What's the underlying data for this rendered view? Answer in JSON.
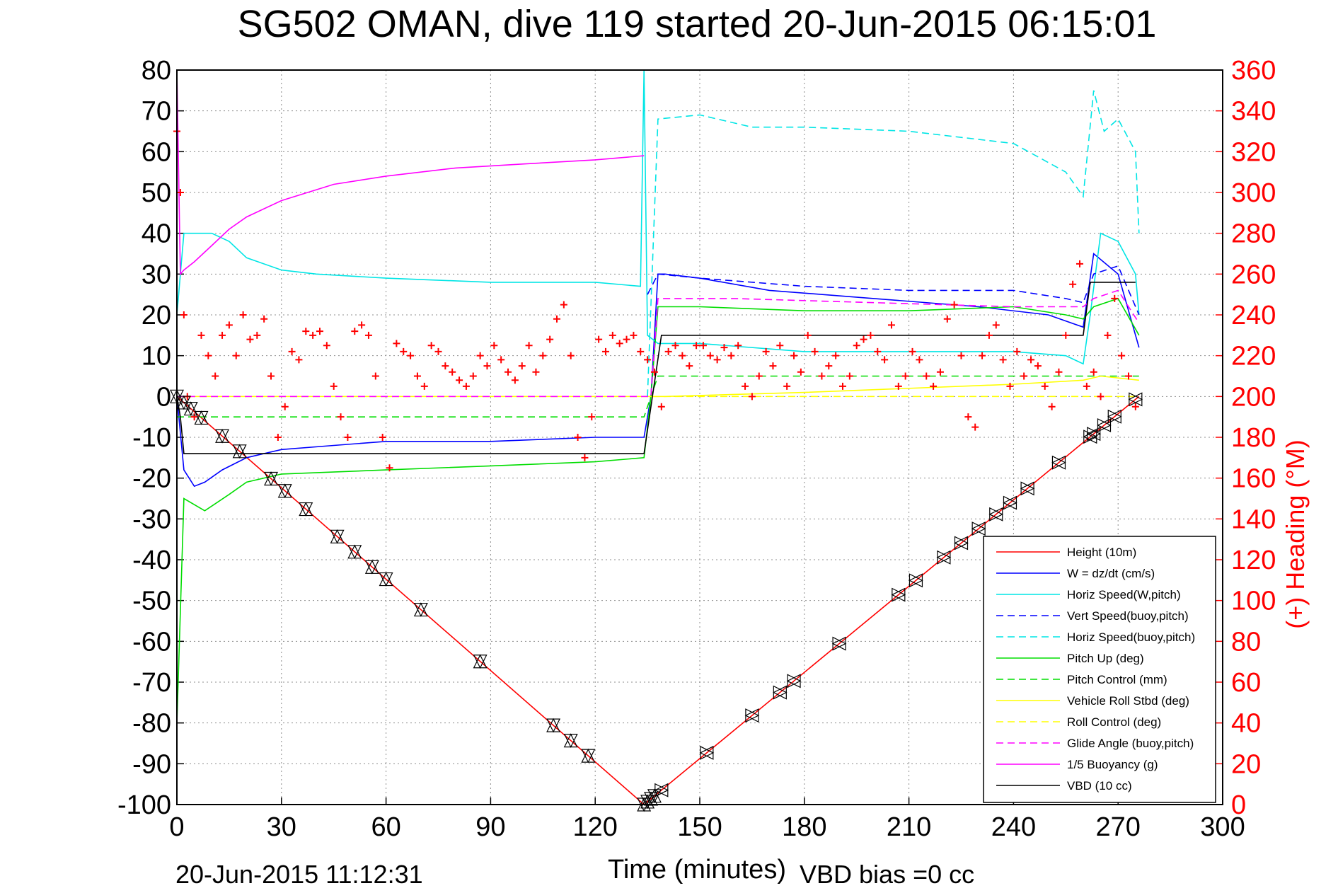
{
  "footer": {
    "timestamp": "20-Jun-2015 11:12:31",
    "vbd_bias": "VBD bias =0 cc"
  },
  "chart_data": {
    "type": "line",
    "title": "SG502 OMAN, dive 119 started 20-Jun-2015 06:15:01",
    "xlabel": "Time (minutes)",
    "ylabel": "",
    "y2label": "(+) Heading (°M)",
    "xlim": [
      0,
      300
    ],
    "ylim": [
      -100,
      80
    ],
    "y2lim": [
      0,
      360
    ],
    "grid": true,
    "legend_position": "bottom-right",
    "x_ticks": [
      "0",
      "30",
      "60",
      "90",
      "120",
      "150",
      "180",
      "210",
      "240",
      "270",
      "300"
    ],
    "y_ticks": [
      "80",
      "70",
      "60",
      "50",
      "40",
      "30",
      "20",
      "10",
      "0",
      "-10",
      "-20",
      "-30",
      "-40",
      "-50",
      "-60",
      "-70",
      "-80",
      "-90",
      "-100"
    ],
    "y2_ticks": [
      "360",
      "340",
      "320",
      "300",
      "280",
      "260",
      "240",
      "220",
      "200",
      "180",
      "160",
      "140",
      "120",
      "100",
      "80",
      "60",
      "40",
      "20",
      "0"
    ],
    "colors": {
      "axis": "#000000",
      "heading": "#ff0000",
      "grid": "#8c8c8c"
    },
    "series": [
      {
        "name": "Height (10m)",
        "color": "#ff0000",
        "dash": "solid",
        "x": [
          0,
          134,
          276
        ],
        "y": [
          0,
          -100,
          0
        ]
      },
      {
        "name": "W = dz/dt (cm/s)",
        "color": "#0000ff",
        "dash": "solid",
        "x": [
          0,
          2,
          5,
          8,
          13,
          20,
          30,
          45,
          60,
          90,
          120,
          134,
          136,
          138,
          140,
          150,
          170,
          200,
          230,
          250,
          260,
          263,
          270,
          276
        ],
        "y": [
          0,
          -18,
          -22,
          -21,
          -18,
          -15,
          -13,
          -12,
          -11,
          -11,
          -10,
          -10,
          0,
          30,
          30,
          29,
          26,
          24,
          22,
          20,
          17,
          35,
          30,
          12
        ]
      },
      {
        "name": "Horiz Speed(W,pitch)",
        "color": "#00e5e5",
        "dash": "solid",
        "x": [
          0,
          2,
          5,
          10,
          15,
          20,
          30,
          40,
          60,
          90,
          120,
          133,
          134,
          135,
          138,
          150,
          180,
          210,
          240,
          255,
          260,
          262,
          265,
          270,
          275,
          276
        ],
        "y": [
          20,
          40,
          40,
          40,
          38,
          34,
          31,
          30,
          29,
          28,
          28,
          27,
          80,
          15,
          13,
          13,
          11,
          11,
          11,
          10,
          8,
          20,
          40,
          38,
          30,
          20
        ]
      },
      {
        "name": "Vert Speed(buoy,pitch)",
        "color": "#0000ff",
        "dash": "dashed",
        "x": [
          135,
          138,
          150,
          180,
          210,
          240,
          255,
          260,
          263,
          270,
          276
        ],
        "y": [
          25,
          30,
          29,
          27,
          26,
          26,
          24,
          23,
          30,
          32,
          20
        ]
      },
      {
        "name": "Horiz Speed(buoy,pitch)",
        "color": "#00e5e5",
        "dash": "dashed",
        "x": [
          135,
          138,
          150,
          165,
          180,
          210,
          240,
          255,
          260,
          263,
          266,
          270,
          275,
          276
        ],
        "y": [
          0,
          68,
          69,
          66,
          66,
          65,
          62,
          55,
          49,
          75,
          65,
          68,
          60,
          40
        ]
      },
      {
        "name": "Pitch Up (deg)",
        "color": "#00dd00",
        "dash": "solid",
        "x": [
          0,
          2,
          8,
          15,
          20,
          30,
          60,
          90,
          120,
          134,
          136,
          138,
          150,
          180,
          210,
          240,
          255,
          260,
          263,
          270,
          276
        ],
        "y": [
          -80,
          -25,
          -28,
          -24,
          -21,
          -19,
          -18,
          -17,
          -16,
          -15,
          0,
          22,
          22,
          21,
          21,
          22,
          20,
          19,
          22,
          24,
          15
        ]
      },
      {
        "name": "Pitch Control (mm)",
        "color": "#00dd00",
        "dash": "dashed",
        "x": [
          0,
          2,
          134,
          136,
          138,
          276
        ],
        "y": [
          -5,
          -5,
          -5,
          0,
          5,
          5
        ]
      },
      {
        "name": "Vehicle Roll Stbd (deg)",
        "color": "#ffff00",
        "dash": "solid",
        "x": [
          0,
          134,
          136,
          140,
          180,
          240,
          260,
          265,
          276
        ],
        "y": [
          0,
          0,
          0,
          0,
          1,
          3,
          4,
          5,
          4
        ]
      },
      {
        "name": "Roll Control (deg)",
        "color": "#ffff00",
        "dash": "dashed",
        "x": [
          0,
          134,
          136,
          276
        ],
        "y": [
          0,
          0,
          0,
          0
        ]
      },
      {
        "name": "Glide Angle (buoy,pitch)",
        "color": "#ff00ff",
        "dash": "dashed",
        "x": [
          0,
          134,
          136,
          138,
          160,
          200,
          240,
          260,
          263,
          270,
          276
        ],
        "y": [
          0,
          0,
          0,
          24,
          24,
          23,
          22,
          22,
          24,
          26,
          18
        ]
      },
      {
        "name": "1/5 Buoyancy (g)",
        "color": "#ff00ff",
        "dash": "solid",
        "x": [
          0,
          1,
          2,
          5,
          10,
          15,
          20,
          30,
          45,
          60,
          80,
          100,
          120,
          134
        ],
        "y": [
          80,
          30,
          31,
          33,
          37,
          41,
          44,
          48,
          52,
          54,
          56,
          57,
          58,
          59
        ]
      },
      {
        "name": "VBD (10 cc)",
        "color": "#000000",
        "dash": "solid",
        "x": [
          0,
          1,
          2,
          134,
          139,
          140,
          260,
          262,
          275
        ],
        "y": [
          0,
          -5,
          -14,
          -14,
          15,
          15,
          15,
          28,
          28
        ]
      }
    ],
    "heading": {
      "name": "(+) Heading (°M)",
      "color": "#ff0000",
      "x": [
        0,
        1,
        2,
        3,
        5,
        7,
        9,
        11,
        13,
        15,
        17,
        19,
        21,
        23,
        25,
        27,
        29,
        31,
        33,
        35,
        37,
        39,
        41,
        43,
        45,
        47,
        49,
        51,
        53,
        55,
        57,
        59,
        61,
        63,
        65,
        67,
        69,
        71,
        73,
        75,
        77,
        79,
        81,
        83,
        85,
        87,
        89,
        91,
        93,
        95,
        97,
        99,
        101,
        103,
        105,
        107,
        109,
        111,
        113,
        115,
        117,
        119,
        121,
        123,
        125,
        127,
        129,
        131,
        133,
        135,
        137,
        139,
        141,
        143,
        145,
        147,
        149,
        151,
        153,
        155,
        157,
        159,
        161,
        163,
        165,
        167,
        169,
        171,
        173,
        175,
        177,
        179,
        181,
        183,
        185,
        187,
        189,
        191,
        193,
        195,
        197,
        199,
        201,
        203,
        205,
        207,
        209,
        211,
        213,
        215,
        217,
        219,
        221,
        223,
        225,
        227,
        229,
        231,
        233,
        235,
        237,
        239,
        241,
        243,
        245,
        247,
        249,
        251,
        253,
        255,
        257,
        259,
        261,
        263,
        265,
        267,
        269,
        271,
        273,
        275
      ],
      "y": [
        330,
        300,
        240,
        200,
        190,
        230,
        220,
        210,
        230,
        235,
        220,
        240,
        228,
        230,
        238,
        210,
        180,
        195,
        222,
        218,
        232,
        230,
        232,
        225,
        205,
        190,
        180,
        232,
        235,
        230,
        210,
        180,
        165,
        226,
        222,
        220,
        210,
        205,
        225,
        222,
        215,
        212,
        208,
        205,
        210,
        220,
        215,
        225,
        218,
        212,
        208,
        215,
        225,
        212,
        220,
        228,
        238,
        245,
        220,
        180,
        170,
        190,
        228,
        222,
        230,
        226,
        228,
        230,
        222,
        218,
        212,
        195,
        222,
        225,
        220,
        215,
        225,
        225,
        220,
        218,
        224,
        220,
        225,
        205,
        200,
        210,
        222,
        215,
        225,
        205,
        220,
        212,
        230,
        222,
        210,
        215,
        220,
        205,
        210,
        225,
        228,
        230,
        222,
        218,
        235,
        205,
        210,
        222,
        218,
        210,
        205,
        212,
        238,
        245,
        220,
        190,
        185,
        220,
        230,
        235,
        218,
        205,
        222,
        210,
        218,
        215,
        205,
        195,
        212,
        230,
        255,
        265,
        205,
        212,
        200,
        230,
        248,
        220,
        210,
        195
      ]
    },
    "markers": {
      "color": "#000000",
      "down_x": [
        0,
        2,
        4,
        7,
        13,
        18,
        27,
        31,
        37,
        46,
        51,
        56,
        60,
        70,
        87,
        108,
        113,
        118,
        134,
        135,
        136,
        137
      ],
      "up_x": [
        139,
        152,
        165,
        173,
        177,
        190,
        207,
        212,
        220,
        225,
        230,
        235,
        239,
        244,
        253,
        262,
        263,
        266,
        269,
        275
      ]
    }
  }
}
